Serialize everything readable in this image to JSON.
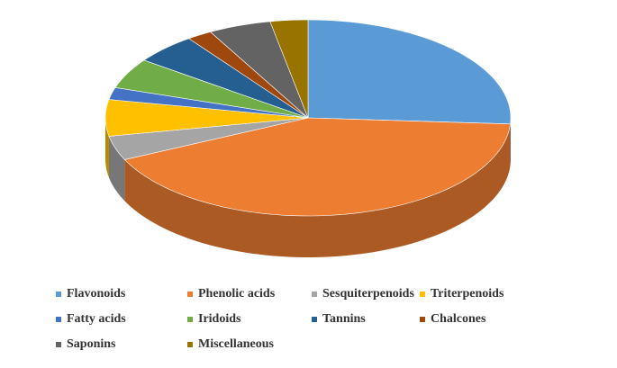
{
  "chart_data": {
    "type": "pie3d",
    "categories": [
      "Flavonoids",
      "Phenolic acids",
      "Sesquiterpenoids",
      "Triterpenoids",
      "Fatty acids",
      "Iridoids",
      "Tannins",
      "Chalcones",
      "Saponins",
      "Miscellaneous"
    ],
    "values": [
      26,
      42,
      4,
      6,
      2,
      5,
      5,
      2,
      5,
      3
    ],
    "colors": [
      "#5b9bd5",
      "#ed7d31",
      "#a5a5a5",
      "#ffc000",
      "#4472c4",
      "#70ad47",
      "#255e91",
      "#9e480e",
      "#636363",
      "#997300"
    ],
    "legend": "bottom"
  }
}
